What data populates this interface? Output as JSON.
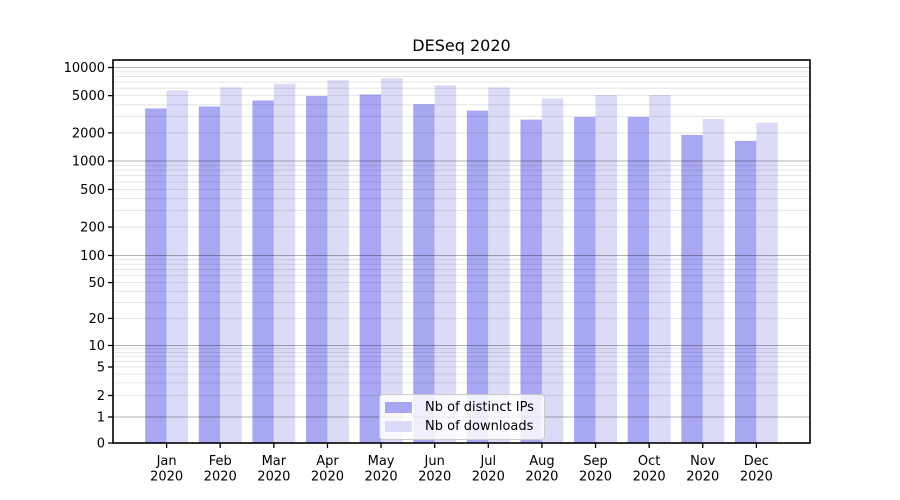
{
  "chart_data": {
    "type": "bar",
    "title": "DESeq 2020",
    "categories": [
      "Jan",
      "Feb",
      "Mar",
      "Apr",
      "May",
      "Jun",
      "Jul",
      "Aug",
      "Sep",
      "Oct",
      "Nov",
      "Dec"
    ],
    "category_year": "2020",
    "series": [
      {
        "name": "Nb of distinct IPs",
        "color": "#a8a8f2",
        "values": [
          3650,
          3830,
          4440,
          4950,
          5150,
          4050,
          3460,
          2770,
          2960,
          2960,
          1900,
          1640
        ]
      },
      {
        "name": "Nb of downloads",
        "color": "#dbdbf8",
        "values": [
          5690,
          6130,
          6700,
          7290,
          7680,
          6450,
          6130,
          4670,
          5080,
          5080,
          2820,
          2570
        ]
      }
    ],
    "yscale": "symlog",
    "ylim": [
      0,
      11800
    ],
    "ytick_values": [
      0,
      1,
      2,
      5,
      10,
      20,
      50,
      100,
      200,
      500,
      1000,
      2000,
      5000,
      10000
    ],
    "ytick_labels": [
      "0",
      "1",
      "2",
      "5",
      "10",
      "20",
      "50",
      "100",
      "200",
      "500",
      "1000",
      "2000",
      "5000",
      "10000"
    ],
    "major_grid_values": [
      1,
      10,
      100,
      1000,
      10000
    ],
    "grid": "both",
    "legend_position": "lower-center",
    "colors": {
      "bar_dark": "#a8a8f2",
      "bar_light": "#dbdbf8",
      "major_grid": "#b6b6b6",
      "minor_grid": "#e6e6e6",
      "spine": "#000000"
    }
  }
}
